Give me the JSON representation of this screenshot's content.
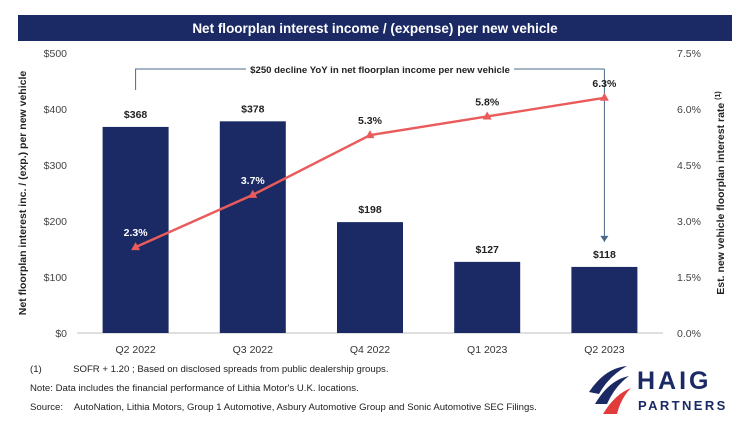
{
  "chart_data": {
    "type": "bar+line",
    "title": "Net floorplan interest income / (expense) per new vehicle",
    "categories": [
      "Q2 2022",
      "Q3 2022",
      "Q4 2022",
      "Q1 2023",
      "Q2 2023"
    ],
    "series": [
      {
        "name": "Net floorplan interest income / (expense) per new vehicle",
        "type": "bar",
        "axis": "left",
        "values": [
          368,
          378,
          198,
          127,
          118
        ],
        "labels": [
          "$368",
          "$378",
          "$198",
          "$127",
          "$118"
        ]
      },
      {
        "name": "Est. new vehicle floorplan interest rate",
        "type": "line",
        "axis": "right",
        "values": [
          2.3,
          3.7,
          5.3,
          5.8,
          6.3
        ],
        "labels": [
          "2.3%",
          "3.7%",
          "5.3%",
          "5.8%",
          "6.3%"
        ]
      }
    ],
    "ylabel": "Net floorplan interest inc. / (exp.) per new vehicle",
    "ylabel_right": "Est. new vehicle floorplan interest rate",
    "ylabel_right_superscript": "(1)",
    "ylim": [
      0,
      500
    ],
    "ylim_right": [
      0,
      7.5
    ],
    "yticks": [
      "$0",
      "$100",
      "$200",
      "$300",
      "$400",
      "$500"
    ],
    "yticks_right": [
      "0.0%",
      "1.5%",
      "3.0%",
      "4.5%",
      "6.0%",
      "7.5%"
    ],
    "annotation": "$250 decline YoY in net floorplan income per new vehicle",
    "grid": false
  },
  "footnotes": {
    "note1_marker": "(1)",
    "note1_text": "SOFR + 1.20 ; Based on disclosed spreads from public dealership groups.",
    "note2": "Note: Data includes the financial performance of Lithia Motor's U.K. locations.",
    "source_label": "Source:",
    "source_text": "AutoNation, Lithia Motors, Group 1 Automotive, Asbury Automotive Group and Sonic Automotive SEC Filings."
  },
  "logo": {
    "name_top": "HAIG",
    "name_bottom": "PARTNERS"
  },
  "colors": {
    "bar": "#1b2a64",
    "line": "#ea5b5b",
    "title_bg": "#1b2a64",
    "annotation_line": "#4a6a8a"
  }
}
